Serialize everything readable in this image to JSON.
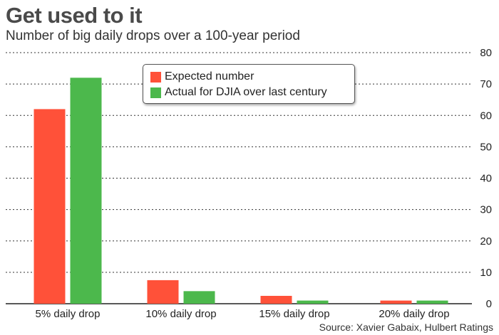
{
  "header": {
    "title": "Get used to it",
    "subtitle": "Number of big daily drops over a 100-year period"
  },
  "source": "Source: Xavier Gabaix, Hulbert Ratings",
  "colors": {
    "expected": "#ff5139",
    "actual": "#4cb84c"
  },
  "chart_data": {
    "type": "bar",
    "title": "Get used to it",
    "subtitle": "Number of big daily drops over a 100-year period",
    "categories": [
      "5% daily drop",
      "10% daily drop",
      "15% daily drop",
      "20% daily drop"
    ],
    "series": [
      {
        "name": "Expected number",
        "values": [
          62,
          7.5,
          2.5,
          1
        ],
        "color": "#ff5139"
      },
      {
        "name": "Actual for DJIA over last century",
        "values": [
          72,
          4,
          1,
          1
        ],
        "color": "#4cb84c"
      }
    ],
    "yticks": [
      "0",
      "10",
      "20",
      "30",
      "40",
      "50",
      "60",
      "70",
      "80"
    ],
    "ylim": [
      0,
      80
    ],
    "y_axis_side": "right",
    "grid": true,
    "legend_position": "top-center",
    "xlabel": "",
    "ylabel": ""
  }
}
